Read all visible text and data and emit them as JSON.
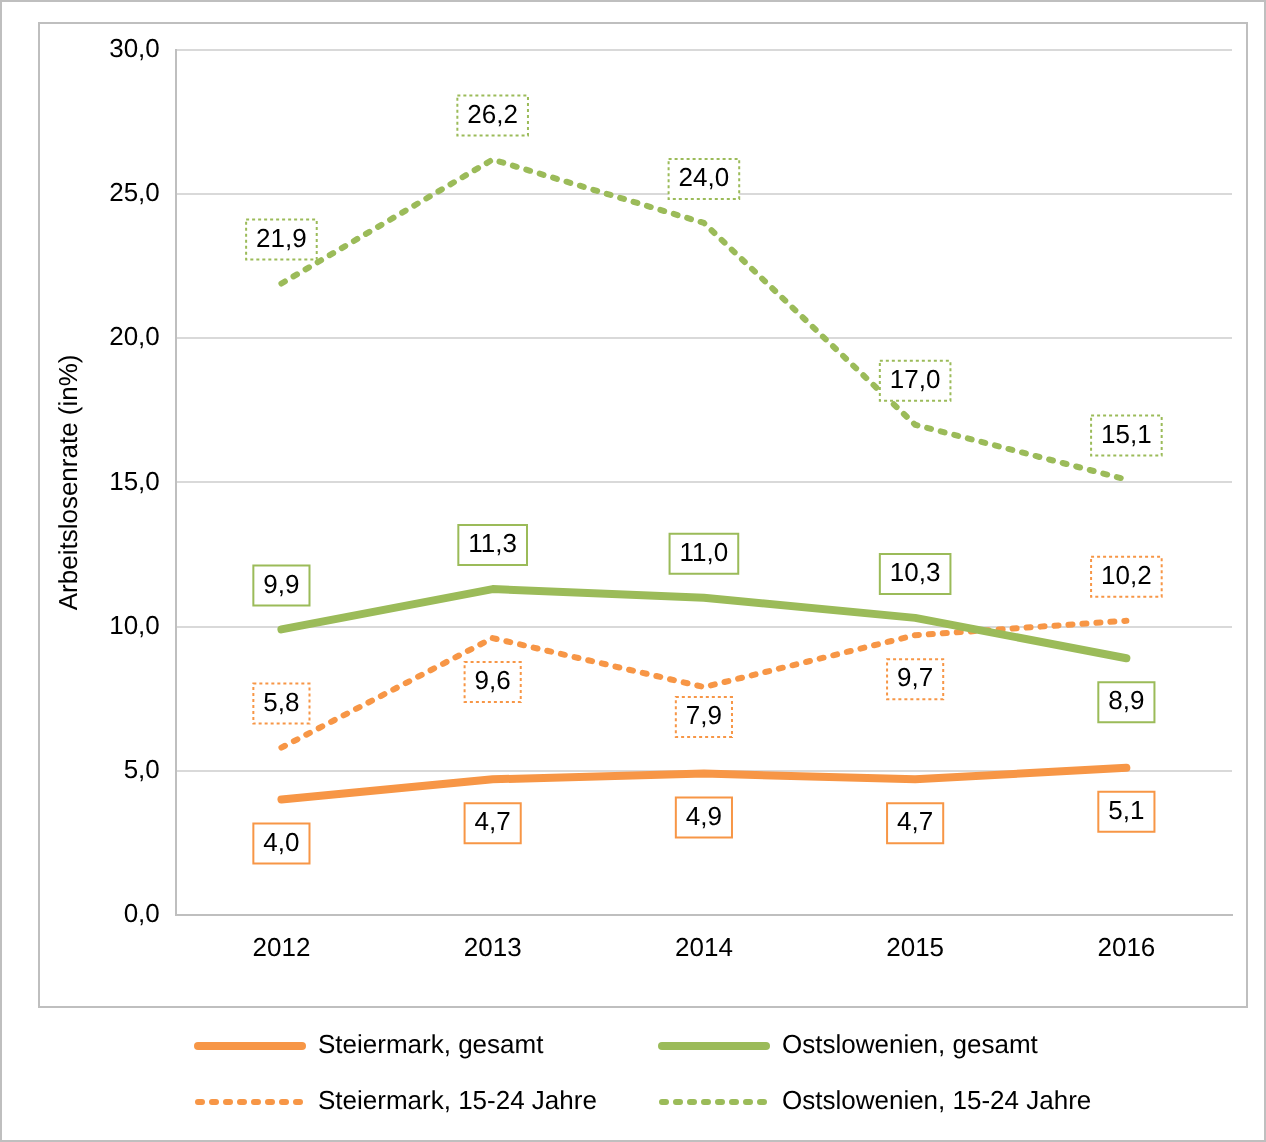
{
  "chart_data": {
    "type": "line",
    "ylabel": "Arbeitslosenrate (in%)",
    "categories": [
      "2012",
      "2013",
      "2014",
      "2015",
      "2016"
    ],
    "ylim": [
      0,
      30
    ],
    "yticks": [
      {
        "value": 0,
        "label": "0,0"
      },
      {
        "value": 5,
        "label": "5,0"
      },
      {
        "value": 10,
        "label": "10,0"
      },
      {
        "value": 15,
        "label": "15,0"
      },
      {
        "value": 20,
        "label": "20,0"
      },
      {
        "value": 25,
        "label": "25,0"
      },
      {
        "value": 30,
        "label": "30,0"
      }
    ],
    "grid": "y",
    "legend": "bottom",
    "marker": "none",
    "series": [
      {
        "name": "Steiermark, gesamt",
        "color": "#f79646",
        "line_style": "solid",
        "values": [
          4.0,
          4.7,
          4.9,
          4.7,
          5.1
        ],
        "value_labels": [
          "4,0",
          "4,7",
          "4,9",
          "4,7",
          "5,1"
        ]
      },
      {
        "name": "Ostslowenien, gesamt",
        "color": "#9bbb59",
        "line_style": "solid",
        "values": [
          9.9,
          11.3,
          11.0,
          10.3,
          8.9
        ],
        "value_labels": [
          "9,9",
          "11,3",
          "11,0",
          "10,3",
          "8,9"
        ]
      },
      {
        "name": "Steiermark, 15-24 Jahre",
        "color": "#f79646",
        "line_style": "dotted",
        "values": [
          5.8,
          9.6,
          7.9,
          9.7,
          10.2
        ],
        "value_labels": [
          "5,8",
          "9,6",
          "7,9",
          "9,7",
          "10,2"
        ]
      },
      {
        "name": "Ostslowenien, 15-24 Jahre",
        "color": "#9bbb59",
        "line_style": "dotted",
        "values": [
          21.9,
          26.2,
          24.0,
          17.0,
          15.1
        ],
        "value_labels": [
          "21,9",
          "26,2",
          "24,0",
          "17,0",
          "15,1"
        ]
      }
    ]
  }
}
